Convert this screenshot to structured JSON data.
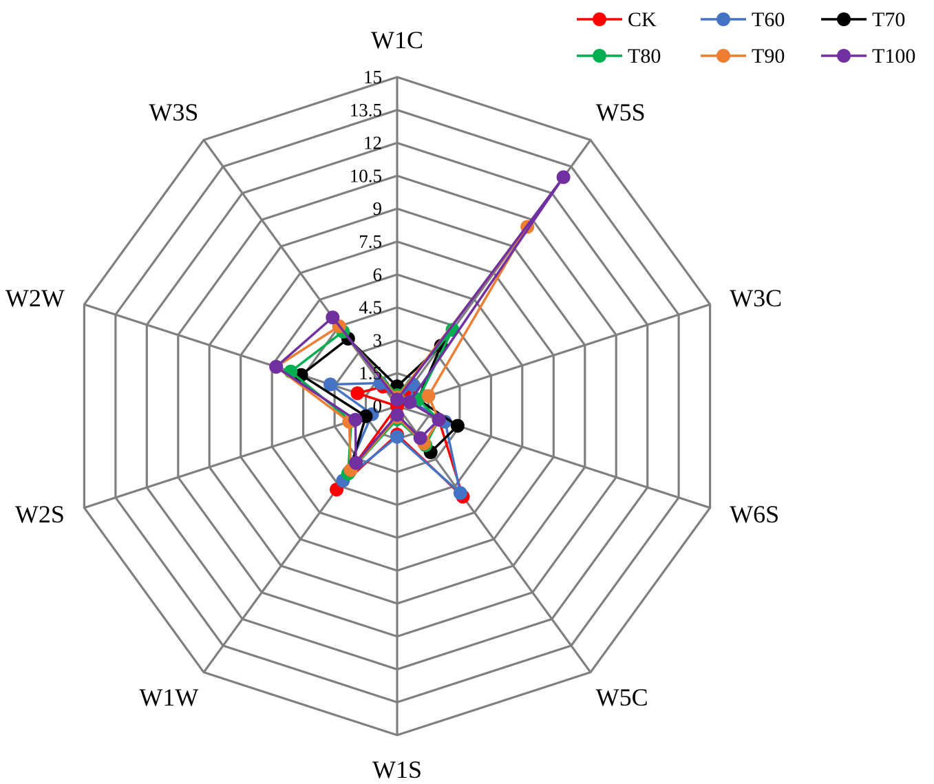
{
  "chart_data": {
    "type": "radar",
    "axes": [
      "W1C",
      "W5S",
      "W3C",
      "W6S",
      "W5C",
      "W1S",
      "W1W",
      "W2S",
      "W2W",
      "W3S"
    ],
    "rlim": [
      0,
      15
    ],
    "ticks": [
      0,
      1.5,
      3,
      4.5,
      6,
      7.5,
      9,
      10.5,
      12,
      13.5,
      15
    ],
    "tick_labels": [
      "0",
      "1.5",
      "3",
      "4.5",
      "6",
      "7.5",
      "9",
      "10.5",
      "12",
      "13.5",
      "15"
    ],
    "legend_position": "top-right",
    "series": [
      {
        "name": "CK",
        "color": "#ff0000",
        "values": [
          0.3,
          0.9,
          0.6,
          2.0,
          5.1,
          1.3,
          4.7,
          0.0,
          1.9,
          1.1
        ]
      },
      {
        "name": "T60",
        "color": "#4472c4",
        "values": [
          0.3,
          1.2,
          0.7,
          2.3,
          4.9,
          1.4,
          4.2,
          1.2,
          3.2,
          1.3
        ]
      },
      {
        "name": "T70",
        "color": "#000000",
        "values": [
          0.9,
          3.4,
          1.0,
          2.9,
          2.6,
          0.5,
          3.7,
          1.5,
          4.6,
          3.8
        ]
      },
      {
        "name": "T80",
        "color": "#00b050",
        "values": [
          0.5,
          4.3,
          1.0,
          2.0,
          2.2,
          0.6,
          3.8,
          2.2,
          5.1,
          4.2
        ]
      },
      {
        "name": "T90",
        "color": "#ed7d31",
        "values": [
          0.4,
          10.1,
          1.5,
          2.0,
          2.1,
          0.5,
          3.6,
          2.3,
          5.8,
          4.5
        ]
      },
      {
        "name": "T100",
        "color": "#7030a0",
        "values": [
          0.3,
          12.9,
          0.6,
          2.0,
          1.8,
          0.4,
          3.2,
          2.0,
          5.8,
          5.0
        ]
      }
    ]
  }
}
